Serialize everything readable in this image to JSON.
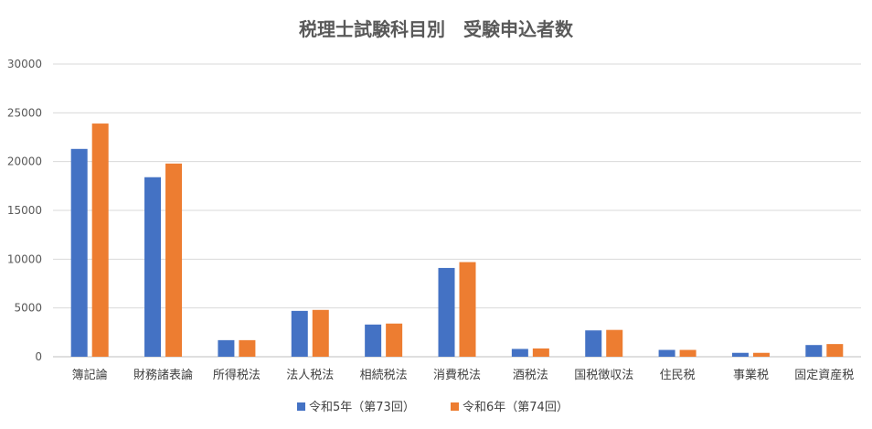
{
  "chart_data": {
    "type": "bar",
    "title": "税理士試験科目別　受験申込者数",
    "categories": [
      "簿記論",
      "財務諸表論",
      "所得税法",
      "法人税法",
      "相続税法",
      "消費税法",
      "酒税法",
      "国税徴収法",
      "住民税",
      "事業税",
      "固定資産税"
    ],
    "series": [
      {
        "name": "令和5年（第73回）",
        "color": "#4472C4",
        "values": [
          21300,
          18400,
          1700,
          4700,
          3300,
          9100,
          800,
          2700,
          700,
          400,
          1200
        ]
      },
      {
        "name": "令和6年（第74回）",
        "color": "#ED7D31",
        "values": [
          23900,
          19800,
          1700,
          4800,
          3400,
          9700,
          850,
          2750,
          700,
          400,
          1300
        ]
      }
    ],
    "yticks": [
      "0",
      "5000",
      "10000",
      "15000",
      "20000",
      "25000",
      "30000"
    ],
    "ylim": [
      0,
      30000
    ],
    "grid": true,
    "legend_position": "bottom"
  }
}
